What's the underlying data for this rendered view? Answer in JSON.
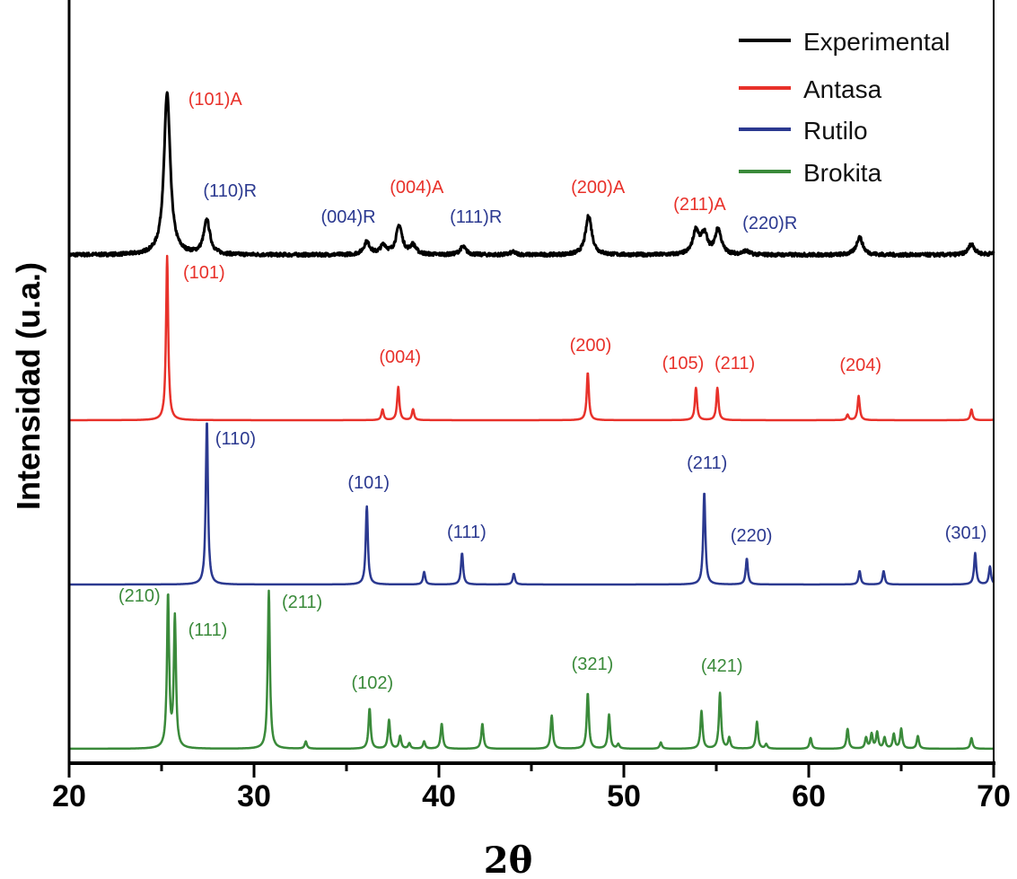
{
  "chart_data": {
    "type": "line",
    "title": "",
    "xlabel": "2θ",
    "ylabel": "Intensidad (u.a.)",
    "xlim": [
      20,
      70
    ],
    "ylim": [
      0,
      850
    ],
    "xticks": [
      20,
      30,
      40,
      50,
      60,
      70
    ],
    "xticks_minor": [
      25,
      35,
      45,
      55,
      65
    ],
    "legend_position": "top-right",
    "series": [
      {
        "name": "Experimental",
        "color": "#000000",
        "baseline": 566,
        "width": 0.2,
        "noise": true,
        "peaks": [
          [
            25.3,
            181
          ],
          [
            27.45,
            38
          ],
          [
            36.1,
            14
          ],
          [
            37.0,
            10
          ],
          [
            37.85,
            32
          ],
          [
            38.6,
            10
          ],
          [
            41.3,
            9
          ],
          [
            44.0,
            3
          ],
          [
            48.1,
            44
          ],
          [
            53.9,
            26
          ],
          [
            54.35,
            22
          ],
          [
            55.1,
            28
          ],
          [
            56.6,
            4
          ],
          [
            62.75,
            20
          ],
          [
            68.8,
            12
          ],
          [
            70.4,
            10
          ]
        ],
        "labels": [
          {
            "text": "(101)A",
            "x": 27.9,
            "y": 733,
            "color": "#e8312a"
          },
          {
            "text": "(110)R",
            "x": 28.7,
            "y": 631,
            "color": "#2b3990"
          },
          {
            "text": "(004)R",
            "x": 35.1,
            "y": 602,
            "color": "#2b3990"
          },
          {
            "text": "(004)A",
            "x": 38.8,
            "y": 635,
            "color": "#e8312a"
          },
          {
            "text": "(111)R",
            "x": 42.0,
            "y": 602,
            "color": "#2b3990"
          },
          {
            "text": "(200)A",
            "x": 48.6,
            "y": 635,
            "color": "#e8312a"
          },
          {
            "text": "(211)A",
            "x": 54.1,
            "y": 616,
            "color": "#e8312a"
          },
          {
            "text": "(220)R",
            "x": 57.9,
            "y": 595,
            "color": "#2b3990"
          }
        ]
      },
      {
        "name": "Antasa",
        "color": "#e8312a",
        "baseline": 382,
        "width": 0.07,
        "noise": false,
        "peaks": [
          [
            25.3,
            183
          ],
          [
            36.95,
            12
          ],
          [
            37.8,
            37
          ],
          [
            38.6,
            12
          ],
          [
            48.05,
            53
          ],
          [
            53.9,
            36
          ],
          [
            55.06,
            36
          ],
          [
            62.1,
            6
          ],
          [
            62.7,
            27
          ],
          [
            68.8,
            12
          ],
          [
            70.3,
            10
          ]
        ],
        "labels": [
          {
            "text": "(101)",
            "x": 27.3,
            "y": 540,
            "color": "#e8312a"
          },
          {
            "text": "(004)",
            "x": 37.9,
            "y": 446,
            "color": "#e8312a"
          },
          {
            "text": "(200)",
            "x": 48.2,
            "y": 459,
            "color": "#e8312a"
          },
          {
            "text": "(105)",
            "x": 53.2,
            "y": 439,
            "color": "#e8312a"
          },
          {
            "text": "(211)",
            "x": 56.0,
            "y": 439,
            "color": "#e8312a"
          },
          {
            "text": "(204)",
            "x": 62.8,
            "y": 437,
            "color": "#e8312a"
          }
        ]
      },
      {
        "name": "Rutilo",
        "color": "#2b3990",
        "baseline": 199,
        "width": 0.07,
        "noise": false,
        "peaks": [
          [
            27.45,
            183
          ],
          [
            36.1,
            87
          ],
          [
            39.2,
            14
          ],
          [
            41.25,
            35
          ],
          [
            44.05,
            12
          ],
          [
            54.35,
            103
          ],
          [
            56.65,
            29
          ],
          [
            62.75,
            15
          ],
          [
            64.05,
            15
          ],
          [
            69.0,
            35
          ],
          [
            69.8,
            20
          ]
        ],
        "labels": [
          {
            "text": "(110)",
            "x": 29.0,
            "y": 355,
            "color": "#2b3990"
          },
          {
            "text": "(101)",
            "x": 36.2,
            "y": 306,
            "color": "#2b3990"
          },
          {
            "text": "(111)",
            "x": 41.5,
            "y": 251,
            "color": "#2b3990"
          },
          {
            "text": "(211)",
            "x": 54.5,
            "y": 328,
            "color": "#2b3990"
          },
          {
            "text": "(220)",
            "x": 56.9,
            "y": 247,
            "color": "#2b3990"
          },
          {
            "text": "(301)",
            "x": 68.5,
            "y": 250,
            "color": "#2b3990"
          }
        ]
      },
      {
        "name": "Brokita",
        "color": "#3a8a3a",
        "baseline": 16,
        "width": 0.07,
        "noise": false,
        "peaks": [
          [
            25.35,
            170
          ],
          [
            25.72,
            145
          ],
          [
            30.8,
            176
          ],
          [
            32.8,
            8
          ],
          [
            36.25,
            45
          ],
          [
            37.3,
            32
          ],
          [
            37.9,
            14
          ],
          [
            38.4,
            6
          ],
          [
            39.2,
            8
          ],
          [
            40.15,
            28
          ],
          [
            42.35,
            28
          ],
          [
            46.1,
            37
          ],
          [
            48.05,
            62
          ],
          [
            49.2,
            38
          ],
          [
            49.7,
            5
          ],
          [
            52.0,
            7
          ],
          [
            54.2,
            42
          ],
          [
            55.2,
            62
          ],
          [
            55.7,
            12
          ],
          [
            57.2,
            30
          ],
          [
            57.7,
            5
          ],
          [
            60.1,
            12
          ],
          [
            62.1,
            22
          ],
          [
            63.1,
            12
          ],
          [
            63.4,
            16
          ],
          [
            63.7,
            18
          ],
          [
            64.1,
            12
          ],
          [
            64.6,
            16
          ],
          [
            65.0,
            22
          ],
          [
            65.9,
            14
          ],
          [
            68.8,
            12
          ]
        ],
        "labels": [
          {
            "text": "(210)",
            "x": 23.8,
            "y": 180,
            "color": "#3a8a3a"
          },
          {
            "text": "(111)",
            "x": 27.5,
            "y": 142,
            "color": "#3a8a3a"
          },
          {
            "text": "(211)",
            "x": 32.6,
            "y": 173,
            "color": "#3a8a3a"
          },
          {
            "text": "(102)",
            "x": 36.4,
            "y": 83,
            "color": "#3a8a3a"
          },
          {
            "text": "(321)",
            "x": 48.3,
            "y": 104,
            "color": "#3a8a3a"
          },
          {
            "text": "(421)",
            "x": 55.3,
            "y": 102,
            "color": "#3a8a3a"
          }
        ]
      }
    ]
  }
}
